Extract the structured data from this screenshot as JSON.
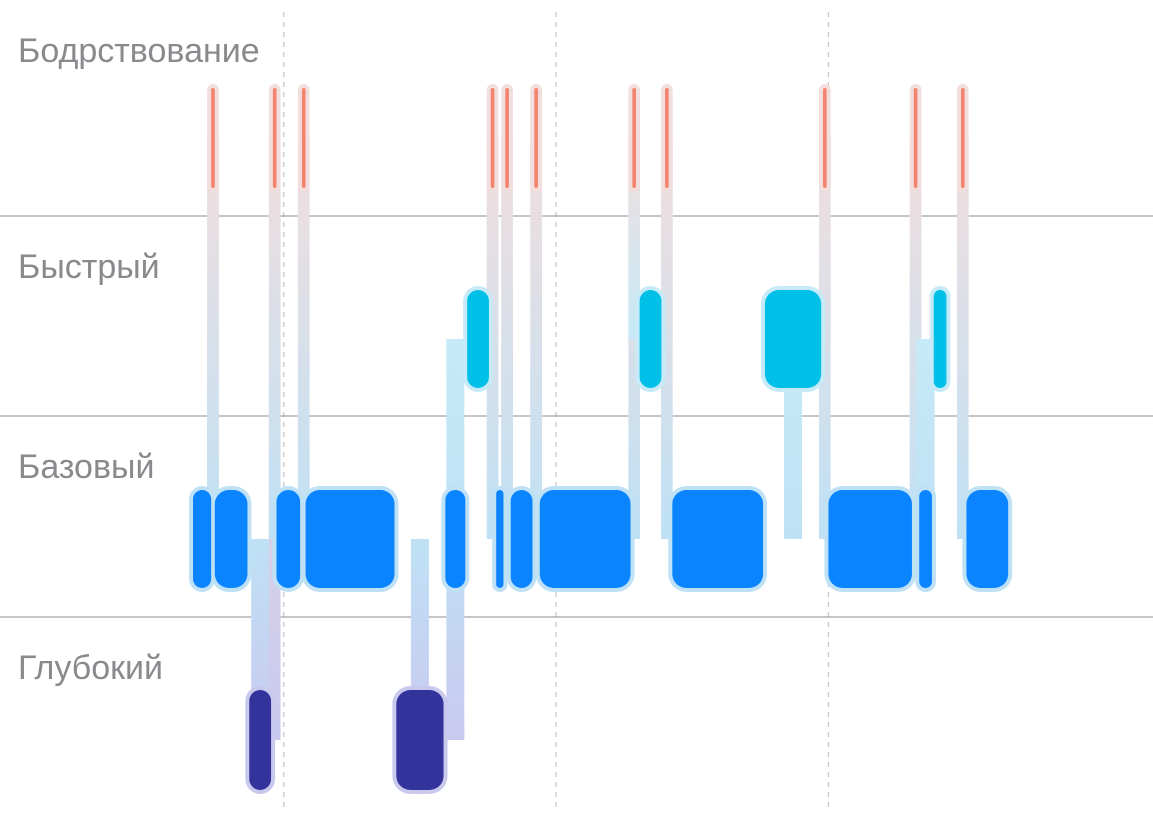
{
  "chart_data": {
    "type": "bar",
    "title": "",
    "xlabel": "",
    "ylabel": "",
    "stages": [
      "Бодрствование",
      "Быстрый",
      "Базовый",
      "Глубокий"
    ],
    "colors": {
      "Бодрствование": "#f4836f",
      "Быстрый": "#00c0e8",
      "Базовый": "#0a84ff",
      "Глубокий": "#32349c",
      "halo_awake": "#f2dedd",
      "halo_rem": "#c6eaf7",
      "halo_core": "#bfe1f5",
      "halo_deep": "#c9c9ee",
      "gridline": "#8e8e93",
      "divider": "#c8c8cc"
    },
    "grid": "horizontal lines between stages, dashed vertical time dividers",
    "segments": [
      {
        "stage": "Базовый",
        "start": 0.0,
        "end": 0.1
      },
      {
        "stage": "Бодрствование",
        "start": 0.1,
        "end": 0.12
      },
      {
        "stage": "Базовый",
        "start": 0.12,
        "end": 0.3
      },
      {
        "stage": "Глубокий",
        "start": 0.31,
        "end": 0.43
      },
      {
        "stage": "Бодрствование",
        "start": 0.44,
        "end": 0.46
      },
      {
        "stage": "Базовый",
        "start": 0.46,
        "end": 0.59
      },
      {
        "stage": "Бодрствование",
        "start": 0.6,
        "end": 0.62
      },
      {
        "stage": "Базовый",
        "start": 0.62,
        "end": 1.11
      },
      {
        "stage": "Глубокий",
        "start": 1.12,
        "end": 1.38
      },
      {
        "stage": "Базовый",
        "start": 1.39,
        "end": 1.5
      },
      {
        "stage": "Быстрый",
        "start": 1.51,
        "end": 1.63
      },
      {
        "stage": "Бодрствование",
        "start": 1.64,
        "end": 1.66
      },
      {
        "stage": "Базовый",
        "start": 1.67,
        "end": 1.71
      },
      {
        "stage": "Бодрствование",
        "start": 1.72,
        "end": 1.74
      },
      {
        "stage": "Базовый",
        "start": 1.75,
        "end": 1.87
      },
      {
        "stage": "Бодрствование",
        "start": 1.88,
        "end": 1.9
      },
      {
        "stage": "Базовый",
        "start": 1.91,
        "end": 2.41
      },
      {
        "stage": "Бодрствование",
        "start": 2.42,
        "end": 2.44
      },
      {
        "stage": "Быстрый",
        "start": 2.46,
        "end": 2.58
      },
      {
        "stage": "Бодрствование",
        "start": 2.6,
        "end": 2.62
      },
      {
        "stage": "Базовый",
        "start": 2.64,
        "end": 3.14
      },
      {
        "stage": "Быстрый",
        "start": 3.15,
        "end": 3.46
      },
      {
        "stage": "Бодрствование",
        "start": 3.47,
        "end": 3.49
      },
      {
        "stage": "Базовый",
        "start": 3.5,
        "end": 3.96
      },
      {
        "stage": "Бодрствование",
        "start": 3.97,
        "end": 3.99
      },
      {
        "stage": "Базовый",
        "start": 4.0,
        "end": 4.07
      },
      {
        "stage": "Быстрый",
        "start": 4.08,
        "end": 4.15
      },
      {
        "stage": "Бодрствование",
        "start": 4.23,
        "end": 4.25
      },
      {
        "stage": "Базовый",
        "start": 4.26,
        "end": 4.49
      }
    ],
    "time_dividers": [
      0.5,
      2.0,
      3.5
    ]
  }
}
